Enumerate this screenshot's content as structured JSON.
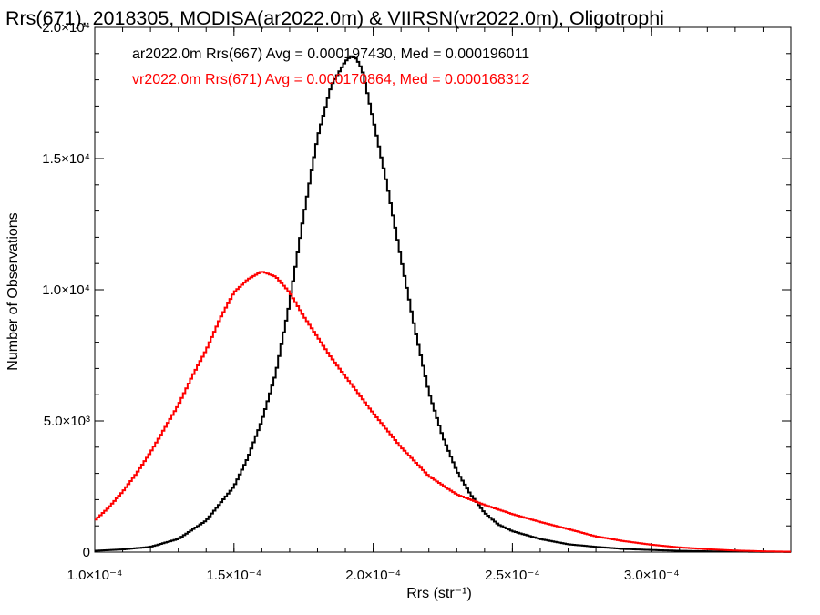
{
  "chart_data": {
    "type": "line",
    "title": "Rrs(671), 2018305, MODISA(ar2022.0m) & VIIRSN(vr2022.0m), Oligotrophi",
    "xlabel": "Rrs (str⁻¹)",
    "ylabel": "Number of Observations",
    "xlim": [
      0.0001,
      0.00035
    ],
    "ylim": [
      0,
      20000
    ],
    "grid": false,
    "legend_position": "top-left",
    "xticks": [
      {
        "value": 0.0001,
        "label": "1.0×10⁻⁴"
      },
      {
        "value": 0.00015,
        "label": "1.5×10⁻⁴"
      },
      {
        "value": 0.0002,
        "label": "2.0×10⁻⁴"
      },
      {
        "value": 0.00025,
        "label": "2.5×10⁻⁴"
      },
      {
        "value": 0.0003,
        "label": "3.0×10⁻⁴"
      }
    ],
    "yticks": [
      {
        "value": 0,
        "label": "0"
      },
      {
        "value": 5000,
        "label": "5.0×10³"
      },
      {
        "value": 10000,
        "label": "1.0×10⁴"
      },
      {
        "value": 15000,
        "label": "1.5×10⁴"
      },
      {
        "value": 20000,
        "label": "2.0×10⁴"
      }
    ],
    "series": [
      {
        "name": "ar2022.0m Rrs(667) Avg = 0.000197430, Med = 0.000196011",
        "color": "#000000",
        "x": [
          0.0001,
          0.00011,
          0.00012,
          0.00013,
          0.00014,
          0.00015,
          0.000155,
          0.00016,
          0.000165,
          0.00017,
          0.000175,
          0.00018,
          0.000185,
          0.00019,
          0.000192,
          0.000194,
          0.000196,
          0.0002,
          0.000205,
          0.00021,
          0.000215,
          0.00022,
          0.000225,
          0.00023,
          0.000235,
          0.00024,
          0.000245,
          0.00025,
          0.00026,
          0.00027,
          0.00028,
          0.00029,
          0.0003,
          0.00031,
          0.00032,
          0.00033,
          0.00034,
          0.00035
        ],
        "y": [
          50,
          100,
          200,
          500,
          1200,
          2500,
          3600,
          5000,
          6800,
          9500,
          12800,
          15800,
          17800,
          18700,
          18900,
          18800,
          18400,
          16500,
          14000,
          11200,
          8500,
          6100,
          4400,
          3100,
          2200,
          1500,
          1050,
          800,
          500,
          300,
          200,
          120,
          80,
          50,
          30,
          20,
          10,
          5
        ]
      },
      {
        "name": "vr2022.0m Rrs(671) Avg = 0.000170864, Med = 0.000168312",
        "color": "#ff0000",
        "x": [
          0.0001,
          0.000105,
          0.00011,
          0.000115,
          0.00012,
          0.000125,
          0.00013,
          0.000135,
          0.00014,
          0.000145,
          0.00015,
          0.000155,
          0.00016,
          0.000165,
          0.00017,
          0.000175,
          0.00018,
          0.000185,
          0.00019,
          0.000195,
          0.0002,
          0.00021,
          0.00022,
          0.00023,
          0.00024,
          0.00025,
          0.00026,
          0.00027,
          0.00028,
          0.00029,
          0.0003,
          0.00031,
          0.00032,
          0.00033,
          0.00034,
          0.00035
        ],
        "y": [
          1200,
          1700,
          2300,
          3000,
          3800,
          4700,
          5600,
          6700,
          7700,
          8900,
          9900,
          10400,
          10700,
          10500,
          9900,
          9000,
          8200,
          7400,
          6700,
          6000,
          5300,
          4000,
          2900,
          2200,
          1800,
          1450,
          1150,
          880,
          600,
          420,
          280,
          180,
          110,
          60,
          30,
          15
        ]
      }
    ]
  }
}
